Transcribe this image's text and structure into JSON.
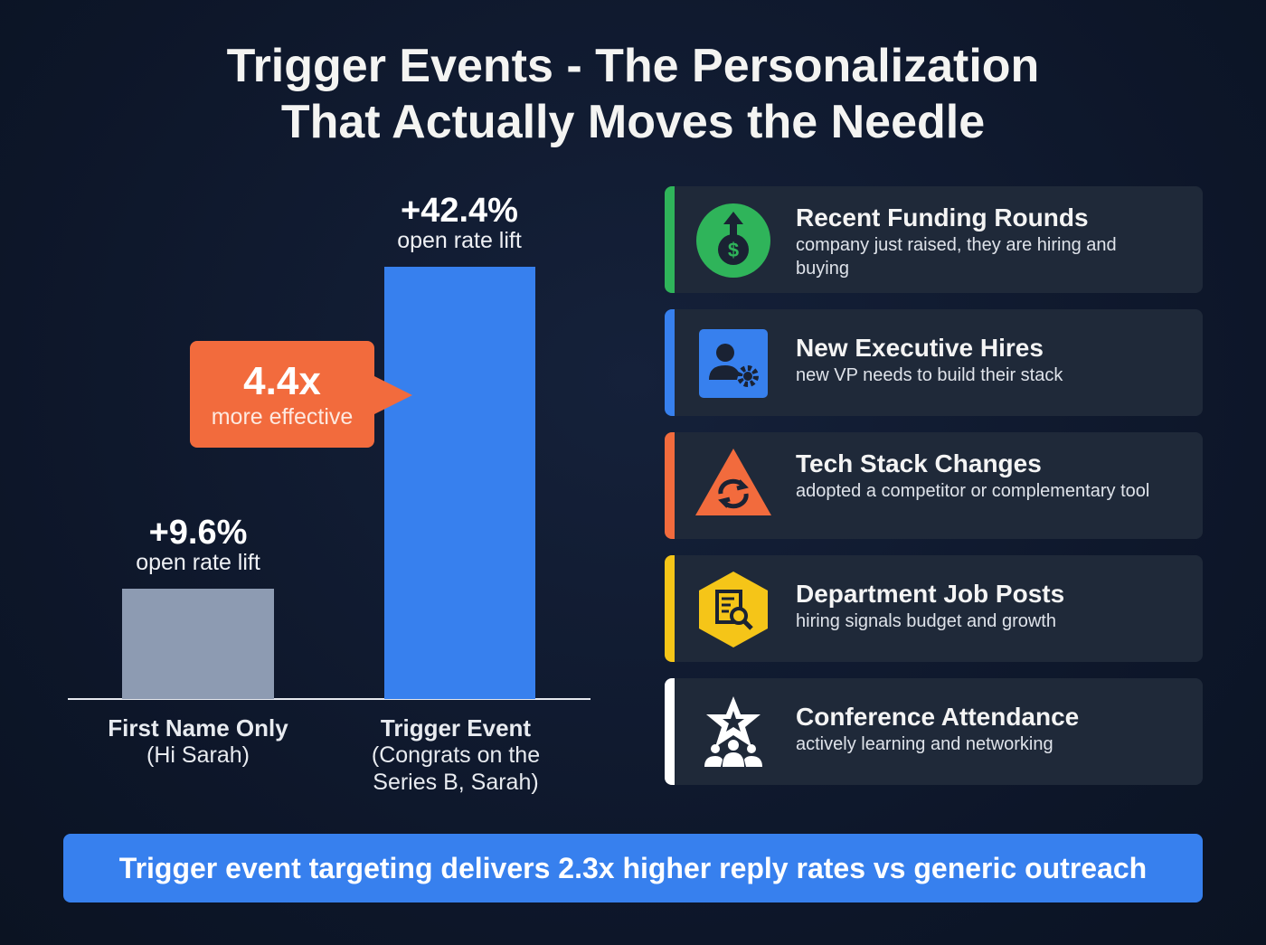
{
  "title_line1": "Trigger Events - The Personalization",
  "title_line2": "That Actually Moves the Needle",
  "chart_data": {
    "type": "bar",
    "categories": [
      "First Name Only (Hi Sarah)",
      "Trigger Event (Congrats on the Series B, Sarah)"
    ],
    "category_titles": [
      "First Name Only",
      "Trigger Event"
    ],
    "category_subtitles": [
      "(Hi Sarah)",
      "(Congrats on the",
      "Series B, Sarah)"
    ],
    "values": [
      9.6,
      42.4
    ],
    "data_labels": [
      "+9.6%",
      "+42.4%"
    ],
    "data_sublabel": "open rate lift",
    "colors": [
      "#8d9bb2",
      "#3780ee"
    ],
    "annotation": {
      "value": "4.4x",
      "text": "more effective",
      "color": "#f26b3d"
    },
    "ylim": [
      0,
      42.4
    ],
    "grid": false
  },
  "cards": [
    {
      "title": "Recent Funding Rounds",
      "desc": "company just raised, they are hiring and buying",
      "icon": "money-bag-up-arrow-icon",
      "color": "#2fb45a"
    },
    {
      "title": "New Executive Hires",
      "desc": "new VP needs to build their stack",
      "icon": "user-gear-icon",
      "color": "#3780ee"
    },
    {
      "title": "Tech Stack Changes",
      "desc": "adopted a competitor or complementary tool",
      "icon": "swap-arrows-triangle-icon",
      "color": "#f26b3d"
    },
    {
      "title": "Department Job Posts",
      "desc": "hiring signals budget and growth",
      "icon": "document-search-icon",
      "color": "#f5c518"
    },
    {
      "title": "Conference Attendance",
      "desc": "actively learning and networking",
      "icon": "star-audience-icon",
      "color": "#ffffff"
    }
  ],
  "banner": "Trigger event targeting delivers 2.3x higher reply rates vs generic outreach"
}
